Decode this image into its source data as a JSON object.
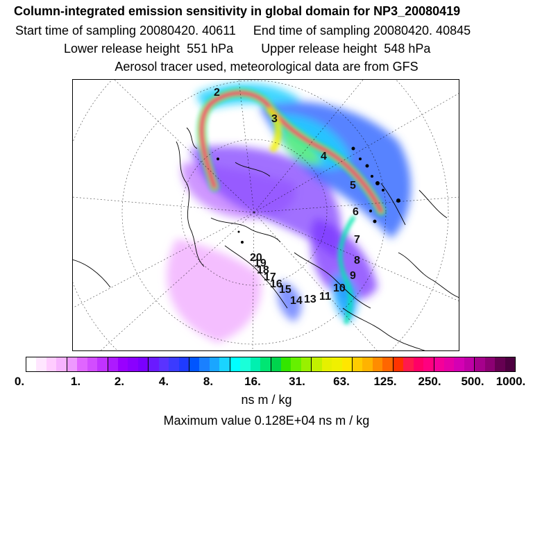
{
  "header": {
    "title": "Column-integrated emission sensitivity in global domain for NP3_20080419",
    "start_time": "Start time of sampling 20080420. 40611",
    "end_time": "End time of sampling 20080420. 40845",
    "lower_release": "Lower release height  551 hPa",
    "upper_release": "Upper release height  548 hPa",
    "tracer_note": "Aerosol tracer used, meteorological data are from GFS"
  },
  "map": {
    "day_labels": [
      "2",
      "3",
      "4",
      "5",
      "6",
      "7",
      "8",
      "9",
      "10",
      "11",
      "14",
      "13",
      "15",
      "16",
      "17",
      "18",
      "19",
      "20"
    ]
  },
  "colorbar": {
    "colors": [
      "#ffffff",
      "#ffe6ff",
      "#ffccff",
      "#f7b3ff",
      "#ee99ff",
      "#e066ff",
      "#d24dff",
      "#c033ff",
      "#ad1aff",
      "#9900ff",
      "#8a00ff",
      "#7a00ff",
      "#6a1aff",
      "#5a33ff",
      "#3b3bff",
      "#1f3bff",
      "#0055ff",
      "#1a80ff",
      "#1aa6ff",
      "#1ad4ff",
      "#00ffff",
      "#1affd9",
      "#00f0b0",
      "#00e673",
      "#00d44d",
      "#33e600",
      "#66f000",
      "#99f000",
      "#c2f000",
      "#e6f000",
      "#f0f000",
      "#ffe600",
      "#ffcc00",
      "#ffb300",
      "#ff8c00",
      "#ff6600",
      "#ff3300",
      "#ff1a4d",
      "#ff0066",
      "#ff0080",
      "#f50099",
      "#e600a6",
      "#d400b3",
      "#bf00a6",
      "#a6008c",
      "#8c0073",
      "#660052",
      "#4d0040"
    ],
    "tick_labels": [
      "0.",
      "1.",
      "2.",
      "4.",
      "8.",
      "16.",
      "31.",
      "63.",
      "125.",
      "250.",
      "500.",
      "1000."
    ],
    "units": "ns m / kg",
    "max_value": "Maximum value  0.128E+04 ns m / kg"
  }
}
